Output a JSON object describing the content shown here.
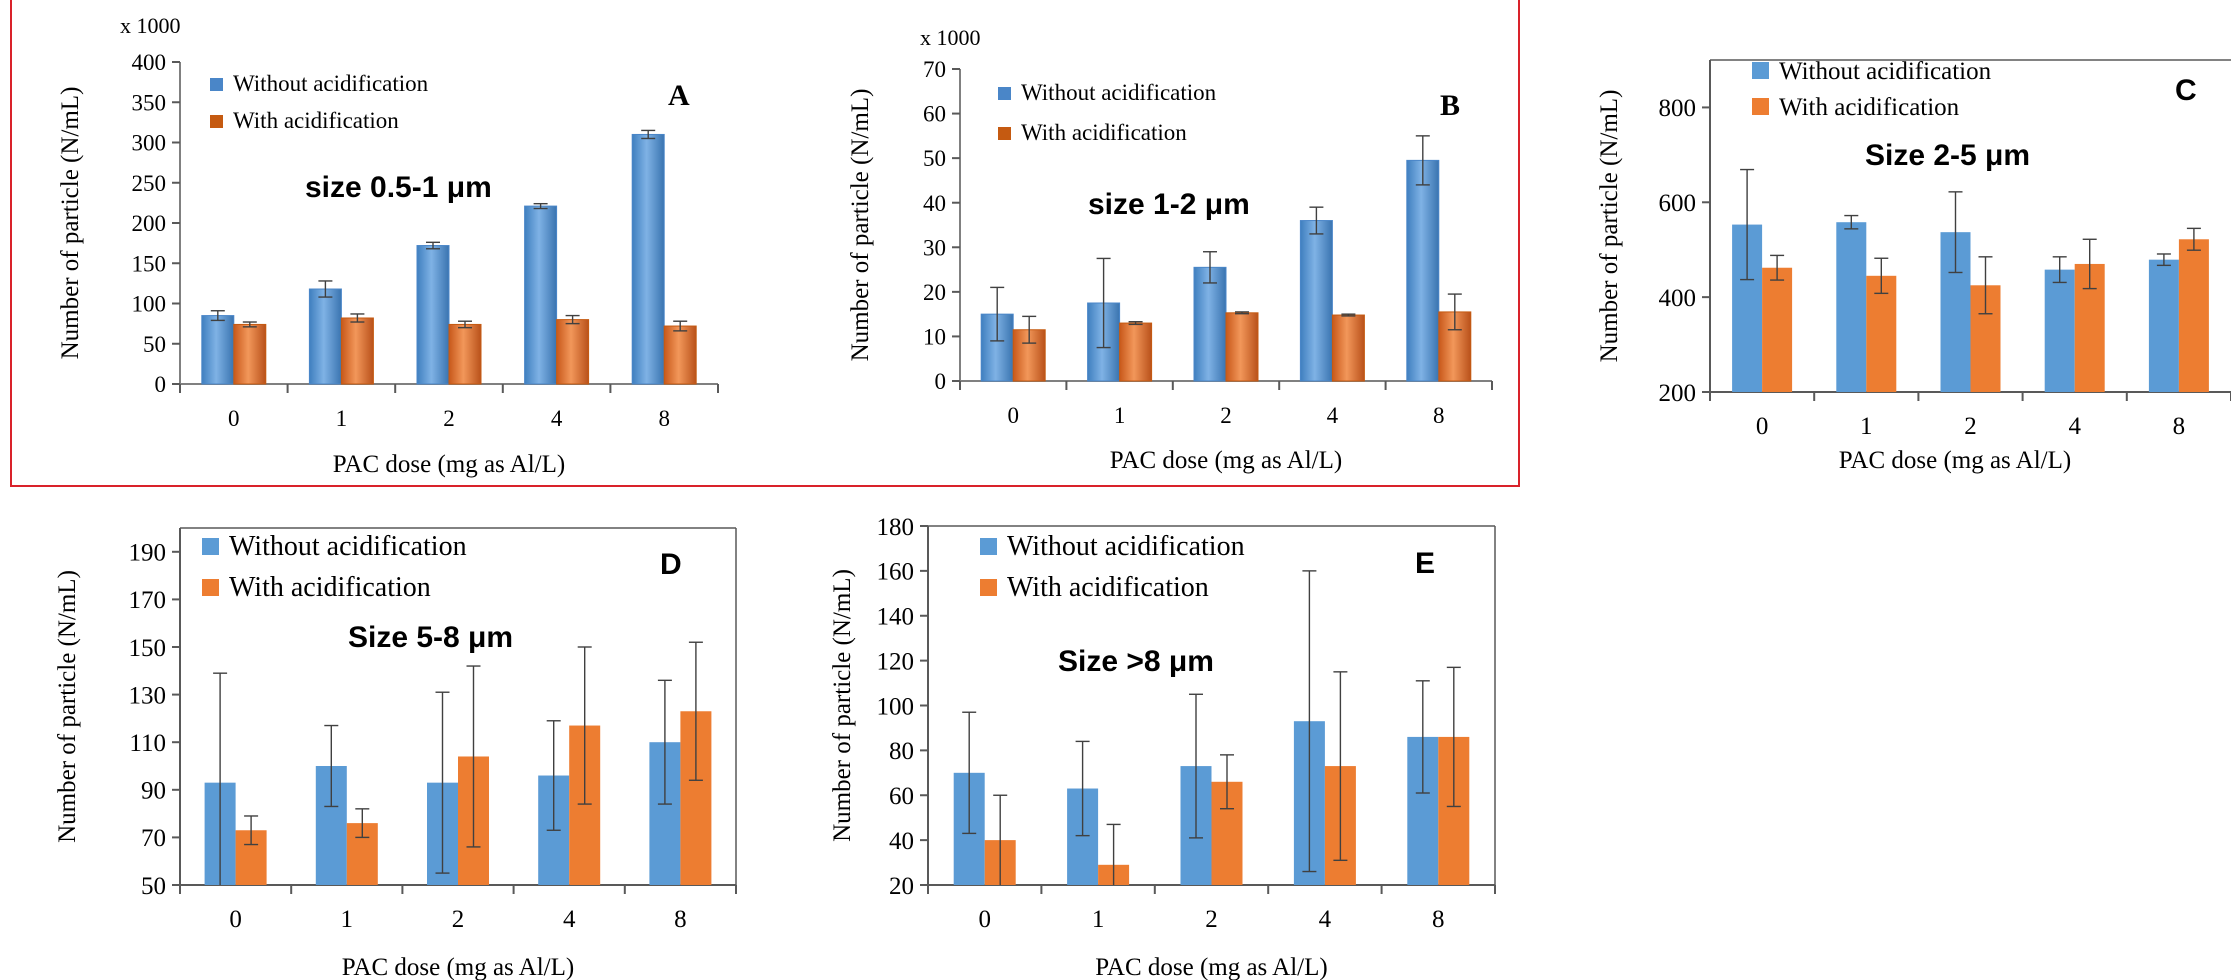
{
  "colors": {
    "without": "#5b9bd5",
    "without_dark": "#4a86c8",
    "with": "#ed7d31",
    "with_dark": "#c55a11",
    "frame": "#d9222a",
    "axis": "#595959",
    "error": "#404040"
  },
  "chart_data": [
    {
      "id": "A",
      "type": "bar",
      "panel_letter": "A",
      "size_label": "size 0.5-1 μm",
      "multiplier": "x 1000",
      "xlabel": "PAC dose (mg as Al/L)",
      "ylabel": "Number of particle (N/mL)",
      "categories": [
        "0",
        "1",
        "2",
        "4",
        "8"
      ],
      "ylim": [
        0,
        400
      ],
      "yticks": [
        0,
        50,
        100,
        150,
        200,
        250,
        300,
        350,
        400
      ],
      "legend_position": "top-left",
      "style": "gradient",
      "series": [
        {
          "name": "Without acidification",
          "values": [
            85,
            118,
            172,
            221,
            310
          ],
          "errors": [
            6,
            10,
            4,
            3,
            5
          ]
        },
        {
          "name": "With acidification",
          "values": [
            74,
            82,
            74,
            80,
            72
          ],
          "errors": [
            3,
            5,
            4,
            5,
            6
          ]
        }
      ]
    },
    {
      "id": "B",
      "type": "bar",
      "panel_letter": "B",
      "size_label": "size 1-2 μm",
      "multiplier": "x 1000",
      "xlabel": "PAC dose (mg as Al/L)",
      "ylabel": "Number of particle (N/mL)",
      "categories": [
        "0",
        "1",
        "2",
        "4",
        "8"
      ],
      "ylim": [
        0,
        70
      ],
      "yticks": [
        0,
        10,
        20,
        30,
        40,
        50,
        60,
        70
      ],
      "legend_position": "top-left",
      "style": "gradient",
      "series": [
        {
          "name": "Without acidification",
          "values": [
            15,
            17.5,
            25.5,
            36,
            49.5
          ],
          "errors": [
            6,
            10,
            3.5,
            3,
            5.5
          ]
        },
        {
          "name": "With acidification",
          "values": [
            11.5,
            13,
            15.3,
            14.8,
            15.5
          ],
          "errors": [
            3,
            0.3,
            0.2,
            0.2,
            4
          ]
        }
      ]
    },
    {
      "id": "C",
      "type": "bar",
      "panel_letter": "C",
      "size_label": "Size 2-5 μm",
      "multiplier": "",
      "xlabel": "PAC dose (mg as Al/L)",
      "ylabel": "Number of particle (N/mL)",
      "categories": [
        "0",
        "1",
        "2",
        "4",
        "8"
      ],
      "ylim": [
        200,
        900
      ],
      "yticks": [
        200,
        400,
        600,
        800
      ],
      "legend_position": "top-left",
      "style": "flat",
      "series": [
        {
          "name": "Without acidification",
          "values": [
            553,
            558,
            537,
            458,
            479
          ],
          "errors": [
            116,
            14,
            85,
            27,
            12
          ]
        },
        {
          "name": "With acidification",
          "values": [
            462,
            445,
            425,
            470,
            522
          ],
          "errors": [
            26,
            37,
            60,
            52,
            23
          ]
        }
      ]
    },
    {
      "id": "D",
      "type": "bar",
      "panel_letter": "D",
      "size_label": "Size 5-8 μm",
      "multiplier": "",
      "xlabel": "PAC dose (mg as Al/L)",
      "ylabel": "Number of particle (N/mL)",
      "categories": [
        "0",
        "1",
        "2",
        "4",
        "8"
      ],
      "ylim": [
        50,
        200
      ],
      "yticks": [
        50,
        70,
        90,
        110,
        130,
        150,
        170,
        190
      ],
      "legend_position": "top-left",
      "style": "flat",
      "series": [
        {
          "name": "Without acidification",
          "values": [
            93,
            100,
            93,
            96,
            110
          ],
          "errors": [
            46,
            17,
            38,
            23,
            26
          ]
        },
        {
          "name": "With acidification",
          "values": [
            73,
            76,
            104,
            117,
            123
          ],
          "errors": [
            6,
            6,
            38,
            33,
            29
          ]
        }
      ]
    },
    {
      "id": "E",
      "type": "bar",
      "panel_letter": "E",
      "size_label": "Size >8 μm",
      "multiplier": "",
      "xlabel": "PAC dose (mg as Al/L)",
      "ylabel": "Number of particle (N/mL)",
      "categories": [
        "0",
        "1",
        "2",
        "4",
        "8"
      ],
      "ylim": [
        20,
        180
      ],
      "yticks": [
        20,
        40,
        60,
        80,
        100,
        120,
        140,
        160,
        180
      ],
      "legend_position": "top-left",
      "style": "flat",
      "series": [
        {
          "name": "Without acidification",
          "values": [
            70,
            63,
            73,
            93,
            86
          ],
          "errors": [
            27,
            21,
            32,
            67,
            25
          ]
        },
        {
          "name": "With acidification",
          "values": [
            40,
            29,
            66,
            73,
            86
          ],
          "errors": [
            20,
            18,
            12,
            42,
            31
          ]
        }
      ]
    }
  ]
}
